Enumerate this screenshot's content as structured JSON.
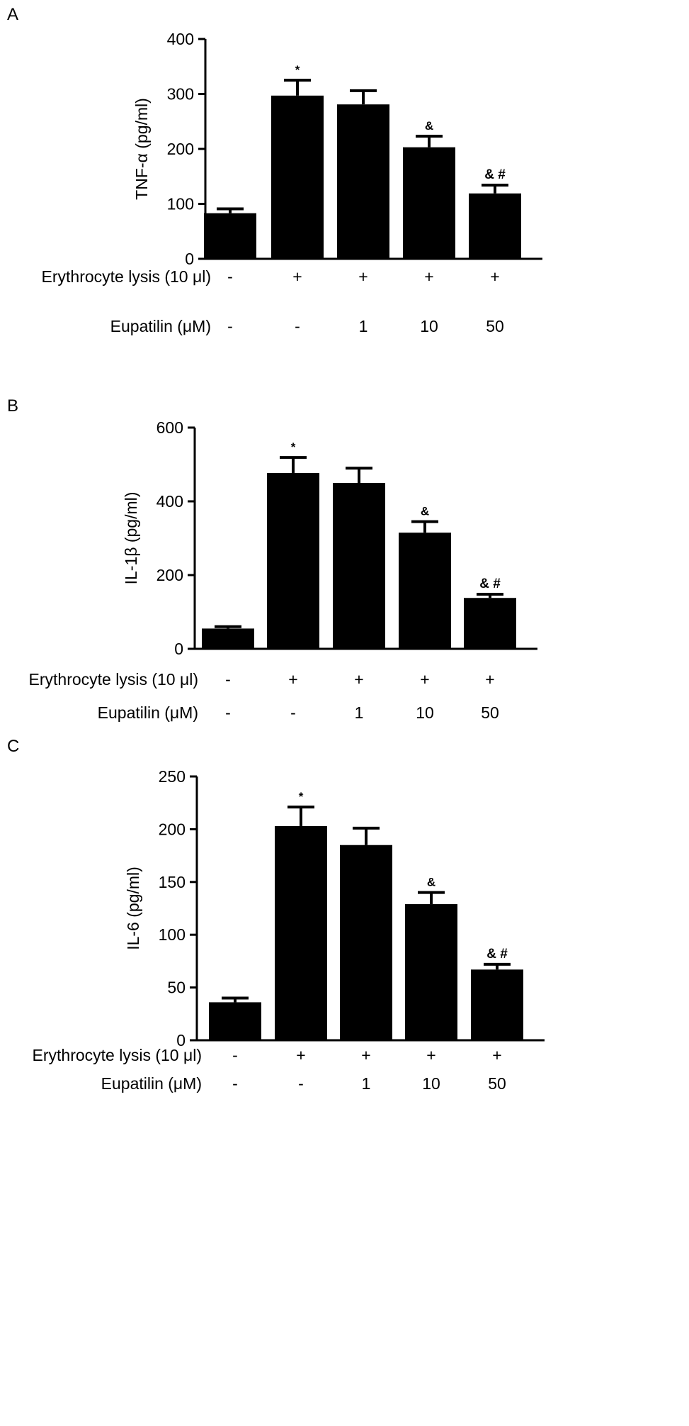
{
  "chart_data": [
    {
      "type": "bar",
      "panel_label": "A",
      "ylabel": "TNF-α (pg/ml)",
      "ylim": [
        0,
        400
      ],
      "yticks": [
        0,
        100,
        200,
        300,
        400
      ],
      "bar_color": "#000000",
      "values": [
        83,
        297,
        281,
        203,
        119
      ],
      "errors": [
        8,
        28,
        25,
        20,
        15
      ],
      "annotations": [
        "",
        "*",
        "",
        "&",
        "& #"
      ],
      "conditions": [
        {
          "label": "Erythrocyte lysis (10 μl)",
          "values": [
            "-",
            "+",
            "+",
            "+",
            "+"
          ]
        },
        {
          "label": "Eupatilin (μM)",
          "values": [
            "-",
            "-",
            "1",
            "10",
            "50"
          ]
        }
      ]
    },
    {
      "type": "bar",
      "panel_label": "B",
      "ylabel": "IL-1β (pg/ml)",
      "ylim": [
        0,
        600
      ],
      "yticks": [
        0,
        200,
        400,
        600
      ],
      "bar_color": "#000000",
      "values": [
        55,
        477,
        450,
        315,
        138
      ],
      "errors": [
        5,
        42,
        40,
        30,
        10
      ],
      "annotations": [
        "",
        "*",
        "",
        "&",
        "& #"
      ],
      "conditions": [
        {
          "label": "Erythrocyte lysis (10 μl)",
          "values": [
            "-",
            "+",
            "+",
            "+",
            "+"
          ]
        },
        {
          "label": "Eupatilin (μM)",
          "values": [
            "-",
            "-",
            "1",
            "10",
            "50"
          ]
        }
      ]
    },
    {
      "type": "bar",
      "panel_label": "C",
      "ylabel": "IL-6 (pg/ml)",
      "ylim": [
        0,
        250
      ],
      "yticks": [
        0,
        50,
        100,
        150,
        200,
        250
      ],
      "bar_color": "#000000",
      "values": [
        36,
        203,
        185,
        129,
        67
      ],
      "errors": [
        4,
        18,
        16,
        11,
        5
      ],
      "annotations": [
        "",
        "*",
        "",
        "&",
        "& #"
      ],
      "conditions": [
        {
          "label": "Erythrocyte lysis (10 μl)",
          "values": [
            "-",
            "+",
            "+",
            "+",
            "+"
          ]
        },
        {
          "label": "Eupatilin (μM)",
          "values": [
            "-",
            "-",
            "1",
            "10",
            "50"
          ]
        }
      ]
    }
  ]
}
